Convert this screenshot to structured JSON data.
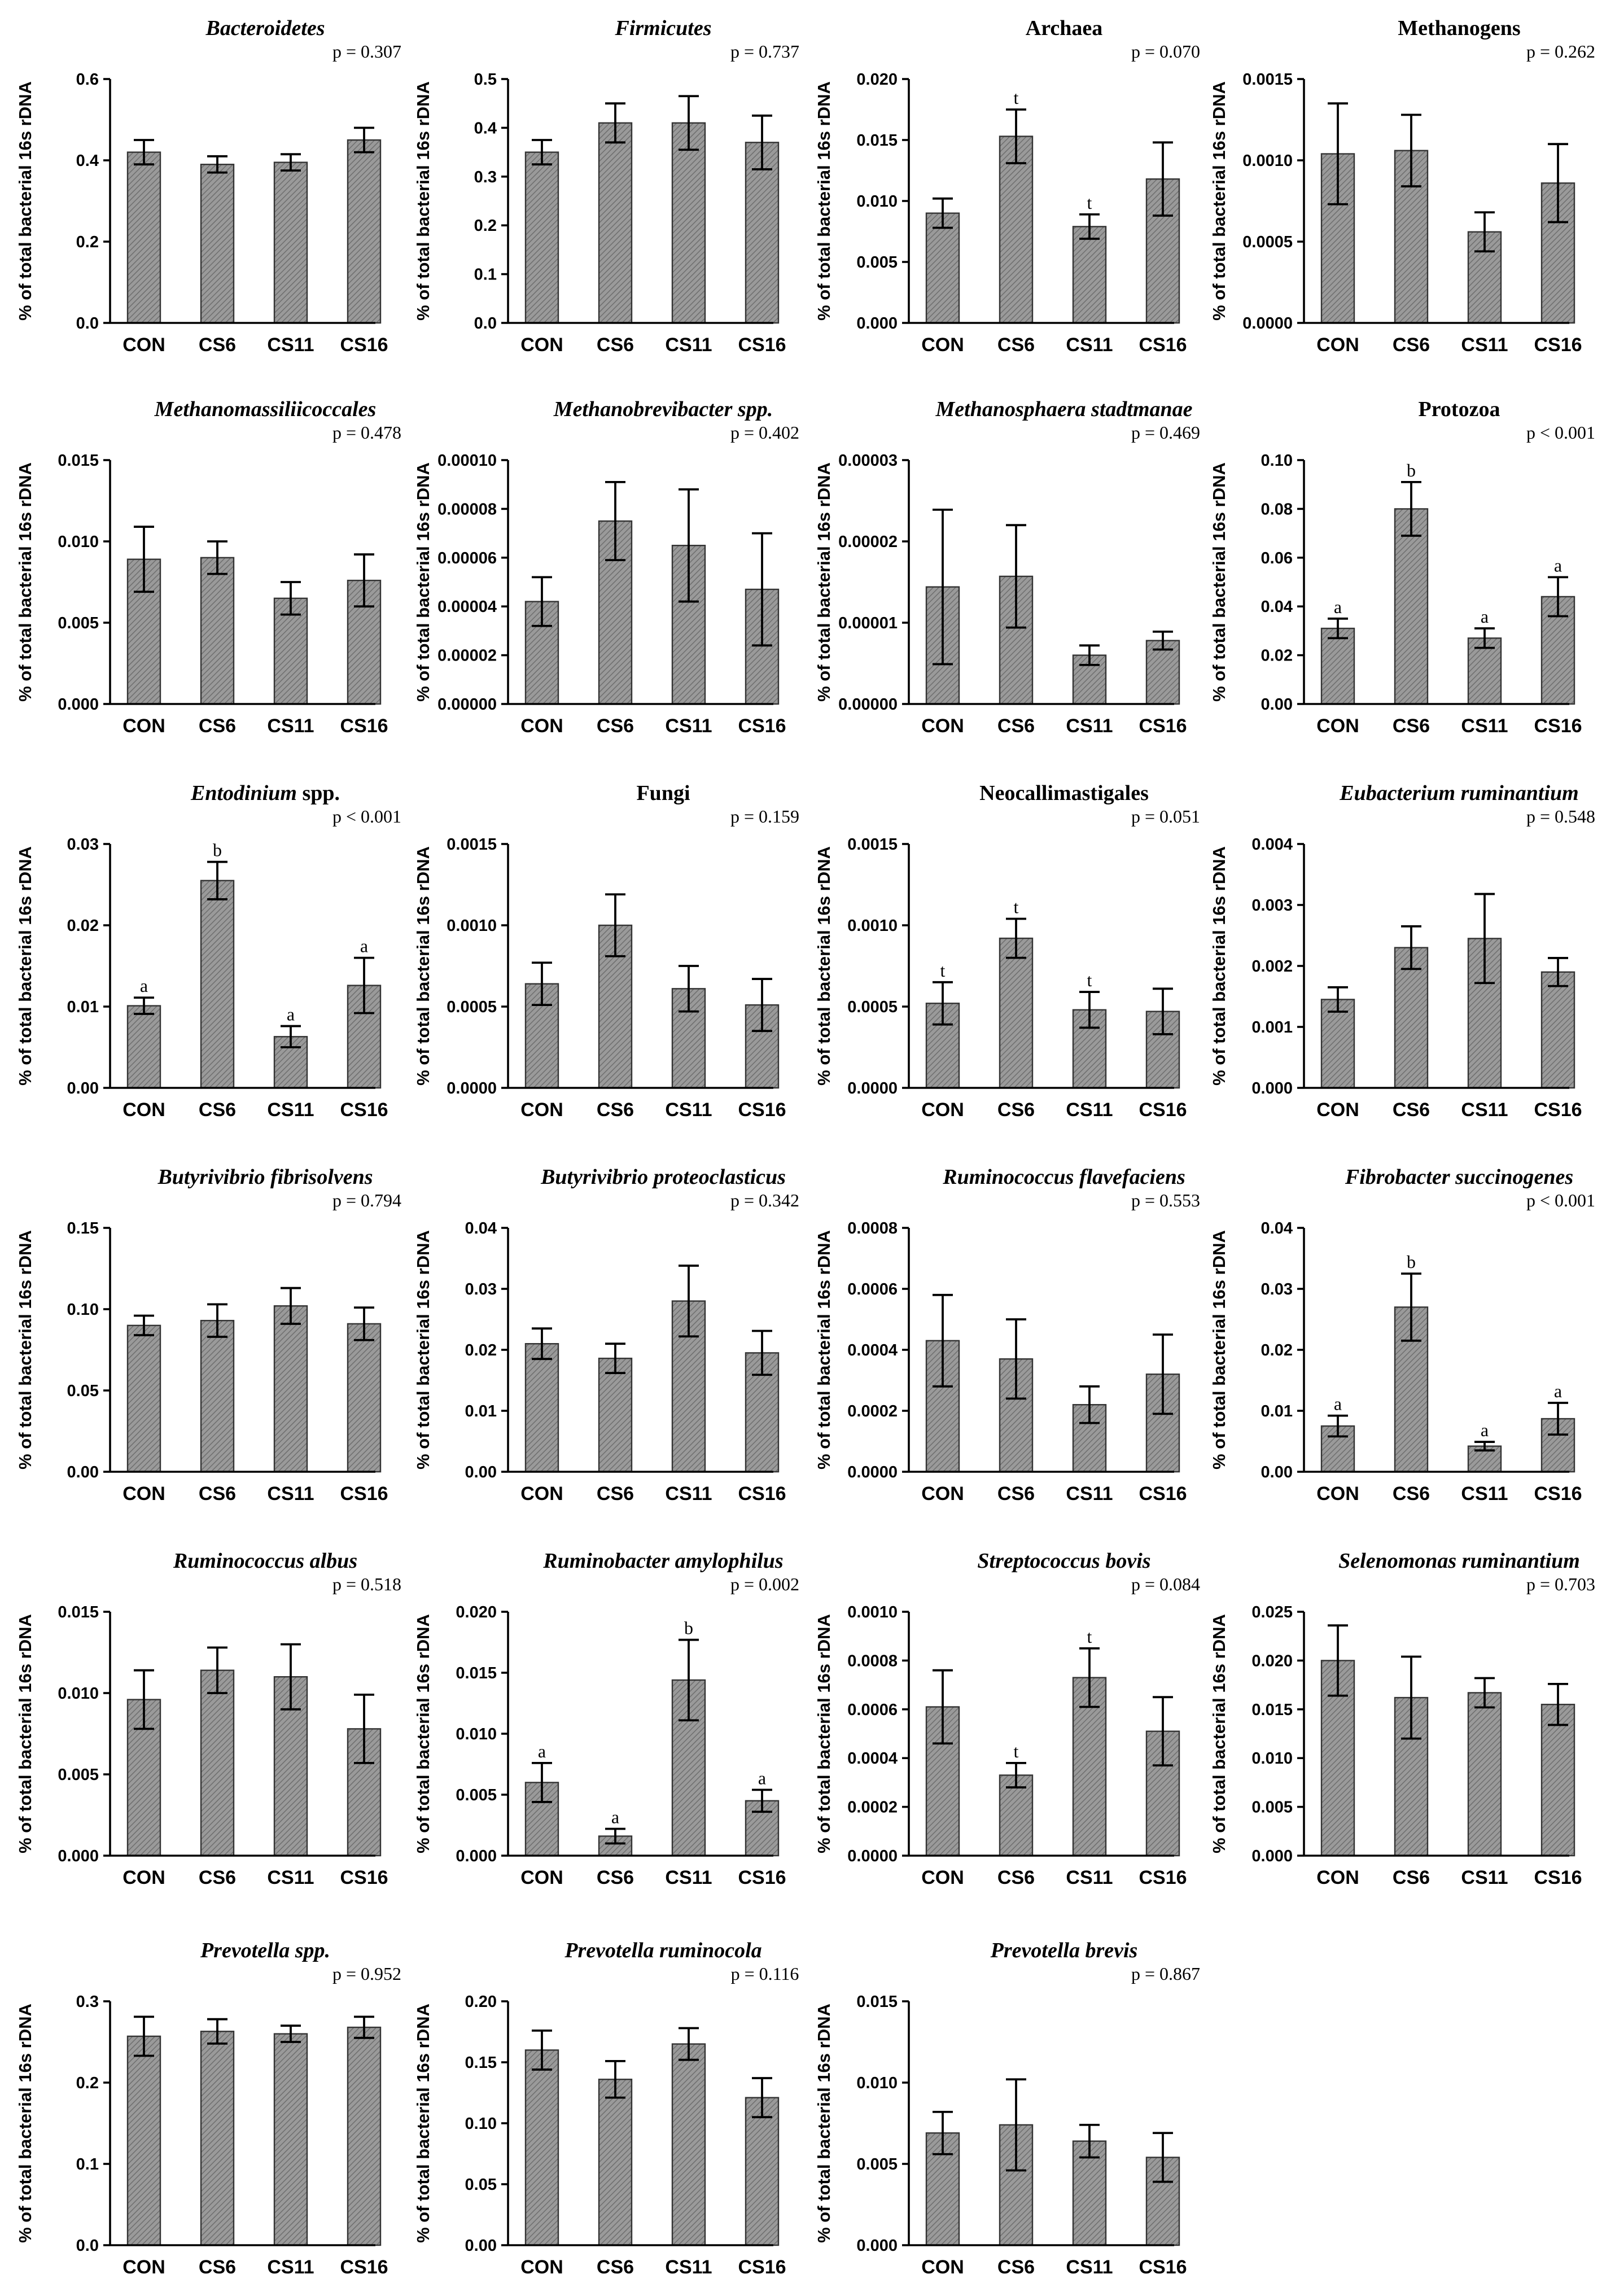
{
  "figure": {
    "ylabel_default": "% of total bacterial 16s rDNA"
  },
  "chart_data": [
    {
      "type": "bar",
      "title": "Bacteroidetes",
      "title_italic": true,
      "pvalue": "p = 0.307",
      "categories": [
        "CON",
        "CS6",
        "CS11",
        "CS16"
      ],
      "values": [
        0.42,
        0.39,
        0.395,
        0.45
      ],
      "errors": [
        0.03,
        0.02,
        0.02,
        0.03
      ],
      "sig": [
        "",
        "",
        "",
        ""
      ],
      "ylim": [
        0,
        0.6
      ],
      "ticks": [
        "0.0",
        "0.2",
        "0.4",
        "0.6"
      ],
      "ylabel": "% of total bacterial 16s rDNA"
    },
    {
      "type": "bar",
      "title": "Firmicutes",
      "title_italic": true,
      "pvalue": "p = 0.737",
      "categories": [
        "CON",
        "CS6",
        "CS11",
        "CS16"
      ],
      "values": [
        0.35,
        0.41,
        0.41,
        0.37
      ],
      "errors": [
        0.025,
        0.04,
        0.055,
        0.055
      ],
      "sig": [
        "",
        "",
        "",
        ""
      ],
      "ylim": [
        0,
        0.5
      ],
      "ticks": [
        "0.0",
        "0.1",
        "0.2",
        "0.3",
        "0.4",
        "0.5"
      ],
      "ylabel": "% of total bacterial 16s rDNA"
    },
    {
      "type": "bar",
      "title": "Archaea",
      "title_italic": false,
      "pvalue": "p = 0.070",
      "categories": [
        "CON",
        "CS6",
        "CS11",
        "CS16"
      ],
      "values": [
        0.009,
        0.0153,
        0.0079,
        0.0118
      ],
      "errors": [
        0.0012,
        0.0022,
        0.001,
        0.003
      ],
      "sig": [
        "",
        "t",
        "t",
        ""
      ],
      "ylim": [
        0,
        0.02
      ],
      "ticks": [
        "0.000",
        "0.005",
        "0.010",
        "0.015",
        "0.020"
      ],
      "ylabel": "% of total bacterial 16s rDNA"
    },
    {
      "type": "bar",
      "title": "Methanogens",
      "title_italic": false,
      "pvalue": "p = 0.262",
      "categories": [
        "CON",
        "CS6",
        "CS11",
        "CS16"
      ],
      "values": [
        0.00104,
        0.00106,
        0.00056,
        0.00086
      ],
      "errors": [
        0.00031,
        0.00022,
        0.00012,
        0.00024
      ],
      "sig": [
        "",
        "",
        "",
        ""
      ],
      "ylim": [
        0,
        0.0015
      ],
      "ticks": [
        "0.0000",
        "0.0005",
        "0.0010",
        "0.0015"
      ],
      "ylabel": "% of total bacterial 16s rDNA"
    },
    {
      "type": "bar",
      "title": "Methanomassiliicoccales",
      "title_italic": true,
      "pvalue": "p = 0.478",
      "categories": [
        "CON",
        "CS6",
        "CS11",
        "CS16"
      ],
      "values": [
        0.0089,
        0.009,
        0.0065,
        0.0076
      ],
      "errors": [
        0.002,
        0.001,
        0.001,
        0.0016
      ],
      "sig": [
        "",
        "",
        "",
        ""
      ],
      "ylim": [
        0,
        0.015
      ],
      "ticks": [
        "0.000",
        "0.005",
        "0.010",
        "0.015"
      ],
      "ylabel": "% of total bacterial 16s rDNA"
    },
    {
      "type": "bar",
      "title": "Methanobrevibacter spp.",
      "title_italic": true,
      "pvalue": "p = 0.402",
      "categories": [
        "CON",
        "CS6",
        "CS11",
        "CS16"
      ],
      "values": [
        4.2e-05,
        7.5e-05,
        6.5e-05,
        4.7e-05
      ],
      "errors": [
        1e-05,
        1.6e-05,
        2.3e-05,
        2.3e-05
      ],
      "sig": [
        "",
        "",
        "",
        ""
      ],
      "ylim": [
        0,
        0.0001
      ],
      "ticks": [
        "0.00000",
        "0.00002",
        "0.00004",
        "0.00006",
        "0.00008",
        "0.00010"
      ],
      "ylabel": "% of total bacterial 16s rDNA"
    },
    {
      "type": "bar",
      "title": "Methanosphaera stadtmanae",
      "title_italic": true,
      "pvalue": "p = 0.469",
      "categories": [
        "CON",
        "CS6",
        "CS11",
        "CS16"
      ],
      "values": [
        1.44e-05,
        1.57e-05,
        6e-06,
        7.8e-06
      ],
      "errors": [
        9.5e-06,
        6.3e-06,
        1.2e-06,
        1.1e-06
      ],
      "sig": [
        "",
        "",
        "",
        ""
      ],
      "ylim": [
        0,
        3e-05
      ],
      "ticks": [
        "0.00000",
        "0.00001",
        "0.00002",
        "0.00003"
      ],
      "ylabel": "% of total bacterial 16s rDNA"
    },
    {
      "type": "bar",
      "title": "Protozoa",
      "title_italic": false,
      "pvalue": "p < 0.001",
      "categories": [
        "CON",
        "CS6",
        "CS11",
        "CS16"
      ],
      "values": [
        0.031,
        0.08,
        0.027,
        0.044
      ],
      "errors": [
        0.004,
        0.011,
        0.004,
        0.008
      ],
      "sig": [
        "a",
        "b",
        "a",
        "a"
      ],
      "ylim": [
        0,
        0.1
      ],
      "ticks": [
        "0.00",
        "0.02",
        "0.04",
        "0.06",
        "0.08",
        "0.10"
      ],
      "ylabel": "% of total bacterial 16s rDNA"
    },
    {
      "type": "bar",
      "title": "Entodinium spp.",
      "title_italic": true,
      "title_italic_part": "Entodinium",
      "pvalue": "p < 0.001",
      "categories": [
        "CON",
        "CS6",
        "CS11",
        "CS16"
      ],
      "values": [
        0.0101,
        0.0255,
        0.0063,
        0.0126
      ],
      "errors": [
        0.001,
        0.0023,
        0.0013,
        0.0034
      ],
      "sig": [
        "a",
        "b",
        "a",
        "a"
      ],
      "ylim": [
        0,
        0.03
      ],
      "ticks": [
        "0.00",
        "0.01",
        "0.02",
        "0.03"
      ],
      "ylabel": "% of total bacterial 16s rDNA"
    },
    {
      "type": "bar",
      "title": "Fungi",
      "title_italic": false,
      "pvalue": "p = 0.159",
      "categories": [
        "CON",
        "CS6",
        "CS11",
        "CS16"
      ],
      "values": [
        0.00064,
        0.001,
        0.00061,
        0.00051
      ],
      "errors": [
        0.00013,
        0.00019,
        0.00014,
        0.00016
      ],
      "sig": [
        "",
        "",
        "",
        ""
      ],
      "ylim": [
        0,
        0.0015
      ],
      "ticks": [
        "0.0000",
        "0.0005",
        "0.0010",
        "0.0015"
      ],
      "ylabel": "% of total bacterial 16s rDNA"
    },
    {
      "type": "bar",
      "title": "Neocallimastigales",
      "title_italic": false,
      "pvalue": "p = 0.051",
      "categories": [
        "CON",
        "CS6",
        "CS11",
        "CS16"
      ],
      "values": [
        0.00052,
        0.00092,
        0.00048,
        0.00047
      ],
      "errors": [
        0.00013,
        0.00012,
        0.00011,
        0.00014
      ],
      "sig": [
        "t",
        "t",
        "t",
        ""
      ],
      "ylim": [
        0,
        0.0015
      ],
      "ticks": [
        "0.0000",
        "0.0005",
        "0.0010",
        "0.0015"
      ],
      "ylabel": "% of total bacterial 16s rDNA"
    },
    {
      "type": "bar",
      "title": "Eubacterium ruminantium",
      "title_italic": true,
      "pvalue": "p = 0.548",
      "categories": [
        "CON",
        "CS6",
        "CS11",
        "CS16"
      ],
      "values": [
        0.00145,
        0.0023,
        0.00245,
        0.0019
      ],
      "errors": [
        0.0002,
        0.00035,
        0.00073,
        0.00023
      ],
      "sig": [
        "",
        "",
        "",
        ""
      ],
      "ylim": [
        0,
        0.004
      ],
      "ticks": [
        "0.000",
        "0.001",
        "0.002",
        "0.003",
        "0.004"
      ],
      "ylabel": "% of total bacterial 16s rDNA"
    },
    {
      "type": "bar",
      "title": "Butyrivibrio fibrisolvens",
      "title_italic": true,
      "pvalue": "p = 0.794",
      "categories": [
        "CON",
        "CS6",
        "CS11",
        "CS16"
      ],
      "values": [
        0.09,
        0.093,
        0.102,
        0.091
      ],
      "errors": [
        0.006,
        0.01,
        0.011,
        0.01
      ],
      "sig": [
        "",
        "",
        "",
        ""
      ],
      "ylim": [
        0,
        0.15
      ],
      "ticks": [
        "0.00",
        "0.05",
        "0.10",
        "0.15"
      ],
      "ylabel": "% of total bacterial 16s rDNA"
    },
    {
      "type": "bar",
      "title": "Butyrivibrio proteoclasticus",
      "title_italic": true,
      "pvalue": "p = 0.342",
      "categories": [
        "CON",
        "CS6",
        "CS11",
        "CS16"
      ],
      "values": [
        0.021,
        0.0186,
        0.028,
        0.0195
      ],
      "errors": [
        0.0025,
        0.0024,
        0.0058,
        0.0036
      ],
      "sig": [
        "",
        "",
        "",
        ""
      ],
      "ylim": [
        0,
        0.04
      ],
      "ticks": [
        "0.00",
        "0.01",
        "0.02",
        "0.03",
        "0.04"
      ],
      "ylabel": "% of total bacterial 16s rDNA"
    },
    {
      "type": "bar",
      "title": "Ruminococcus flavefaciens",
      "title_italic": true,
      "pvalue": "p = 0.553",
      "categories": [
        "CON",
        "CS6",
        "CS11",
        "CS16"
      ],
      "values": [
        0.00043,
        0.00037,
        0.00022,
        0.00032
      ],
      "errors": [
        0.00015,
        0.00013,
        6e-05,
        0.00013
      ],
      "sig": [
        "",
        "",
        "",
        ""
      ],
      "ylim": [
        0,
        0.0008
      ],
      "ticks": [
        "0.0000",
        "0.0002",
        "0.0004",
        "0.0006",
        "0.0008"
      ],
      "ylabel": "% of total bacterial 16s rDNA"
    },
    {
      "type": "bar",
      "title": "Fibrobacter succinogenes",
      "title_italic": true,
      "pvalue": "p < 0.001",
      "categories": [
        "CON",
        "CS6",
        "CS11",
        "CS16"
      ],
      "values": [
        0.0075,
        0.027,
        0.0042,
        0.0087
      ],
      "errors": [
        0.0017,
        0.0055,
        0.0007,
        0.0026
      ],
      "sig": [
        "a",
        "b",
        "a",
        "a"
      ],
      "ylim": [
        0,
        0.04
      ],
      "ticks": [
        "0.00",
        "0.01",
        "0.02",
        "0.03",
        "0.04"
      ],
      "ylabel": "% of total bacterial 16s rDNA"
    },
    {
      "type": "bar",
      "title": "Ruminococcus albus",
      "title_italic": true,
      "pvalue": "p = 0.518",
      "categories": [
        "CON",
        "CS6",
        "CS11",
        "CS16"
      ],
      "values": [
        0.0096,
        0.0114,
        0.011,
        0.0078
      ],
      "errors": [
        0.0018,
        0.0014,
        0.002,
        0.0021
      ],
      "sig": [
        "",
        "",
        "",
        ""
      ],
      "ylim": [
        0,
        0.015
      ],
      "ticks": [
        "0.000",
        "0.005",
        "0.010",
        "0.015"
      ],
      "ylabel": "% of total bacterial 16s rDNA"
    },
    {
      "type": "bar",
      "title": "Ruminobacter amylophilus",
      "title_italic": true,
      "pvalue": "p = 0.002",
      "categories": [
        "CON",
        "CS6",
        "CS11",
        "CS16"
      ],
      "values": [
        0.006,
        0.0016,
        0.0144,
        0.0045
      ],
      "errors": [
        0.0016,
        0.0006,
        0.0033,
        0.0009
      ],
      "sig": [
        "a",
        "a",
        "b",
        "a"
      ],
      "ylim": [
        0,
        0.02
      ],
      "ticks": [
        "0.000",
        "0.005",
        "0.010",
        "0.015",
        "0.020"
      ],
      "ylabel": "% of total bacterial 16s rDNA"
    },
    {
      "type": "bar",
      "title": "Streptococcus bovis",
      "title_italic": true,
      "pvalue": "p = 0.084",
      "categories": [
        "CON",
        "CS6",
        "CS11",
        "CS16"
      ],
      "values": [
        0.00061,
        0.00033,
        0.00073,
        0.00051
      ],
      "errors": [
        0.00015,
        5e-05,
        0.00012,
        0.00014
      ],
      "sig": [
        "",
        "t",
        "t",
        ""
      ],
      "ylim": [
        0,
        0.001
      ],
      "ticks": [
        "0.0000",
        "0.0002",
        "0.0004",
        "0.0006",
        "0.0008",
        "0.0010"
      ],
      "ylabel": "% of total bacterial 16s rDNA"
    },
    {
      "type": "bar",
      "title": "Selenomonas ruminantium",
      "title_italic": true,
      "pvalue": "p = 0.703",
      "categories": [
        "CON",
        "CS6",
        "CS11",
        "CS16"
      ],
      "values": [
        0.02,
        0.0162,
        0.0167,
        0.0155
      ],
      "errors": [
        0.0036,
        0.0042,
        0.0015,
        0.0021
      ],
      "sig": [
        "",
        "",
        "",
        ""
      ],
      "ylim": [
        0,
        0.025
      ],
      "ticks": [
        "0.000",
        "0.005",
        "0.010",
        "0.015",
        "0.020",
        "0.025"
      ],
      "ylabel": "% of total bacterial 16s rDNA"
    },
    {
      "type": "bar",
      "title": "Prevotella spp.",
      "title_italic": true,
      "pvalue": "p = 0.952",
      "categories": [
        "CON",
        "CS6",
        "CS11",
        "CS16"
      ],
      "values": [
        0.257,
        0.263,
        0.26,
        0.268
      ],
      "errors": [
        0.024,
        0.015,
        0.01,
        0.013
      ],
      "sig": [
        "",
        "",
        "",
        ""
      ],
      "ylim": [
        0,
        0.3
      ],
      "ticks": [
        "0.0",
        "0.1",
        "0.2",
        "0.3"
      ],
      "ylabel": "% of total bacterial 16s rDNA"
    },
    {
      "type": "bar",
      "title": "Prevotella ruminocola",
      "title_italic": true,
      "pvalue": "p = 0.116",
      "categories": [
        "CON",
        "CS6",
        "CS11",
        "CS16"
      ],
      "values": [
        0.16,
        0.136,
        0.165,
        0.121
      ],
      "errors": [
        0.016,
        0.015,
        0.013,
        0.016
      ],
      "sig": [
        "",
        "",
        "",
        ""
      ],
      "ylim": [
        0,
        0.2
      ],
      "ticks": [
        "0.00",
        "0.05",
        "0.10",
        "0.15",
        "0.20"
      ],
      "ylabel": "% of total bacterial 16s rDNA"
    },
    {
      "type": "bar",
      "title": "Prevotella brevis",
      "title_italic": true,
      "pvalue": "p = 0.867",
      "categories": [
        "CON",
        "CS6",
        "CS11",
        "CS16"
      ],
      "values": [
        0.0069,
        0.0074,
        0.0064,
        0.0054
      ],
      "errors": [
        0.0013,
        0.0028,
        0.001,
        0.0015
      ],
      "sig": [
        "",
        "",
        "",
        ""
      ],
      "ylim": [
        0,
        0.015
      ],
      "ticks": [
        "0.000",
        "0.005",
        "0.010",
        "0.015"
      ],
      "ylabel": "% of total bacterial 16s rDNA"
    }
  ]
}
